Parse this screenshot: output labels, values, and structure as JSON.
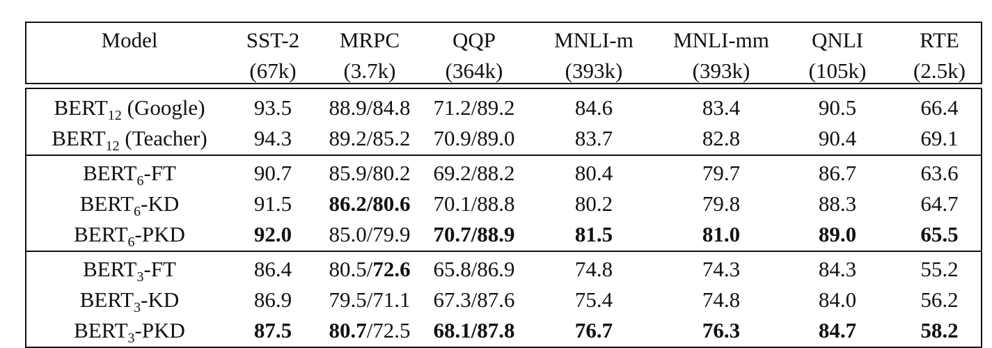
{
  "table": {
    "header": {
      "columns": [
        {
          "name": "Model",
          "size": ""
        },
        {
          "name": "SST-2",
          "size": "(67k)"
        },
        {
          "name": "MRPC",
          "size": "(3.7k)"
        },
        {
          "name": "QQP",
          "size": "(364k)"
        },
        {
          "name": "MNLI-m",
          "size": "(393k)"
        },
        {
          "name": "MNLI-mm",
          "size": "(393k)"
        },
        {
          "name": "QNLI",
          "size": "(105k)"
        },
        {
          "name": "RTE",
          "size": "(2.5k)"
        }
      ]
    },
    "groups": [
      {
        "rows": [
          {
            "model": {
              "base": "BERT",
              "sub": "12",
              "suffix": " (Google)"
            },
            "cells": [
              {
                "v": "93.5"
              },
              {
                "v": "88.9/84.8"
              },
              {
                "v": "71.2/89.2"
              },
              {
                "v": "84.6"
              },
              {
                "v": "83.4"
              },
              {
                "v": "90.5"
              },
              {
                "v": "66.4"
              }
            ]
          },
          {
            "model": {
              "base": "BERT",
              "sub": "12",
              "suffix": " (Teacher)"
            },
            "cells": [
              {
                "v": "94.3"
              },
              {
                "v": "89.2/85.2"
              },
              {
                "v": "70.9/89.0"
              },
              {
                "v": "83.7"
              },
              {
                "v": "82.8"
              },
              {
                "v": "90.4"
              },
              {
                "v": "69.1"
              }
            ]
          }
        ]
      },
      {
        "rows": [
          {
            "model": {
              "base": "BERT",
              "sub": "6",
              "suffix": "-FT"
            },
            "cells": [
              {
                "v": "90.7"
              },
              {
                "v": "85.9/80.2"
              },
              {
                "v": "69.2/88.2"
              },
              {
                "v": "80.4"
              },
              {
                "v": "79.7"
              },
              {
                "v": "86.7"
              },
              {
                "v": "63.6"
              }
            ]
          },
          {
            "model": {
              "base": "BERT",
              "sub": "6",
              "suffix": "-KD"
            },
            "cells": [
              {
                "v": "91.5"
              },
              {
                "v": "86.2/80.6",
                "bold": true
              },
              {
                "v": "70.1/88.8"
              },
              {
                "v": "80.2"
              },
              {
                "v": "79.8"
              },
              {
                "v": "88.3"
              },
              {
                "v": "64.7"
              }
            ]
          },
          {
            "model": {
              "base": "BERT",
              "sub": "6",
              "suffix": "-PKD"
            },
            "cells": [
              {
                "v": "92.0",
                "bold": true
              },
              {
                "v": "85.0/79.9"
              },
              {
                "v": "70.7/88.9",
                "bold": true
              },
              {
                "v": "81.5",
                "bold": true
              },
              {
                "v": "81.0",
                "bold": true
              },
              {
                "v": "89.0",
                "bold": true
              },
              {
                "v": "65.5",
                "bold": true
              }
            ]
          }
        ]
      },
      {
        "rows": [
          {
            "model": {
              "base": "BERT",
              "sub": "3",
              "suffix": "-FT"
            },
            "cells": [
              {
                "v": "86.4"
              },
              {
                "parts": [
                  {
                    "t": "80.5/"
                  },
                  {
                    "t": "72.6",
                    "bold": true
                  }
                ]
              },
              {
                "v": "65.8/86.9"
              },
              {
                "v": "74.8"
              },
              {
                "v": "74.3"
              },
              {
                "v": "84.3"
              },
              {
                "v": "55.2"
              }
            ]
          },
          {
            "model": {
              "base": "BERT",
              "sub": "3",
              "suffix": "-KD"
            },
            "cells": [
              {
                "v": "86.9"
              },
              {
                "v": "79.5/71.1"
              },
              {
                "v": "67.3/87.6"
              },
              {
                "v": "75.4"
              },
              {
                "v": "74.8"
              },
              {
                "v": "84.0"
              },
              {
                "v": "56.2"
              }
            ]
          },
          {
            "model": {
              "base": "BERT",
              "sub": "3",
              "suffix": "-PKD"
            },
            "cells": [
              {
                "v": "87.5",
                "bold": true
              },
              {
                "parts": [
                  {
                    "t": "80.7",
                    "bold": true
                  },
                  {
                    "t": "/72.5"
                  }
                ]
              },
              {
                "v": "68.1/87.8",
                "bold": true
              },
              {
                "v": "76.7",
                "bold": true
              },
              {
                "v": "76.3",
                "bold": true
              },
              {
                "v": "84.7",
                "bold": true
              },
              {
                "v": "58.2",
                "bold": true
              }
            ]
          }
        ]
      }
    ]
  }
}
